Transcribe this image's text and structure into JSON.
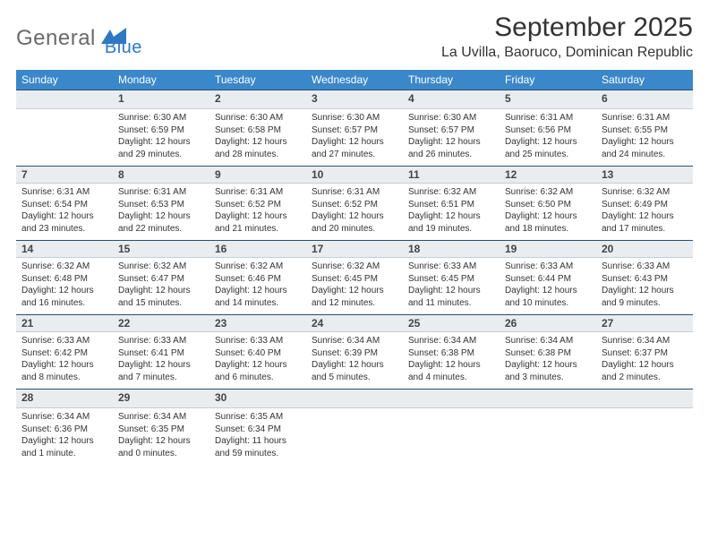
{
  "logo": {
    "text_general": "General",
    "text_blue": "Blue",
    "mark_color": "#2f78c3"
  },
  "title": {
    "month": "September 2025",
    "location": "La Uvilla, Baoruco, Dominican Republic"
  },
  "colors": {
    "header_bg": "#3a88c9",
    "daynum_bg": "#e9edf0",
    "daynum_border_top": "#2a4e72"
  },
  "weekdays": [
    "Sunday",
    "Monday",
    "Tuesday",
    "Wednesday",
    "Thursday",
    "Friday",
    "Saturday"
  ],
  "weeks": [
    [
      {
        "n": "",
        "sunrise": "",
        "sunset": "",
        "daylight": ""
      },
      {
        "n": "1",
        "sunrise": "Sunrise: 6:30 AM",
        "sunset": "Sunset: 6:59 PM",
        "daylight": "Daylight: 12 hours and 29 minutes."
      },
      {
        "n": "2",
        "sunrise": "Sunrise: 6:30 AM",
        "sunset": "Sunset: 6:58 PM",
        "daylight": "Daylight: 12 hours and 28 minutes."
      },
      {
        "n": "3",
        "sunrise": "Sunrise: 6:30 AM",
        "sunset": "Sunset: 6:57 PM",
        "daylight": "Daylight: 12 hours and 27 minutes."
      },
      {
        "n": "4",
        "sunrise": "Sunrise: 6:30 AM",
        "sunset": "Sunset: 6:57 PM",
        "daylight": "Daylight: 12 hours and 26 minutes."
      },
      {
        "n": "5",
        "sunrise": "Sunrise: 6:31 AM",
        "sunset": "Sunset: 6:56 PM",
        "daylight": "Daylight: 12 hours and 25 minutes."
      },
      {
        "n": "6",
        "sunrise": "Sunrise: 6:31 AM",
        "sunset": "Sunset: 6:55 PM",
        "daylight": "Daylight: 12 hours and 24 minutes."
      }
    ],
    [
      {
        "n": "7",
        "sunrise": "Sunrise: 6:31 AM",
        "sunset": "Sunset: 6:54 PM",
        "daylight": "Daylight: 12 hours and 23 minutes."
      },
      {
        "n": "8",
        "sunrise": "Sunrise: 6:31 AM",
        "sunset": "Sunset: 6:53 PM",
        "daylight": "Daylight: 12 hours and 22 minutes."
      },
      {
        "n": "9",
        "sunrise": "Sunrise: 6:31 AM",
        "sunset": "Sunset: 6:52 PM",
        "daylight": "Daylight: 12 hours and 21 minutes."
      },
      {
        "n": "10",
        "sunrise": "Sunrise: 6:31 AM",
        "sunset": "Sunset: 6:52 PM",
        "daylight": "Daylight: 12 hours and 20 minutes."
      },
      {
        "n": "11",
        "sunrise": "Sunrise: 6:32 AM",
        "sunset": "Sunset: 6:51 PM",
        "daylight": "Daylight: 12 hours and 19 minutes."
      },
      {
        "n": "12",
        "sunrise": "Sunrise: 6:32 AM",
        "sunset": "Sunset: 6:50 PM",
        "daylight": "Daylight: 12 hours and 18 minutes."
      },
      {
        "n": "13",
        "sunrise": "Sunrise: 6:32 AM",
        "sunset": "Sunset: 6:49 PM",
        "daylight": "Daylight: 12 hours and 17 minutes."
      }
    ],
    [
      {
        "n": "14",
        "sunrise": "Sunrise: 6:32 AM",
        "sunset": "Sunset: 6:48 PM",
        "daylight": "Daylight: 12 hours and 16 minutes."
      },
      {
        "n": "15",
        "sunrise": "Sunrise: 6:32 AM",
        "sunset": "Sunset: 6:47 PM",
        "daylight": "Daylight: 12 hours and 15 minutes."
      },
      {
        "n": "16",
        "sunrise": "Sunrise: 6:32 AM",
        "sunset": "Sunset: 6:46 PM",
        "daylight": "Daylight: 12 hours and 14 minutes."
      },
      {
        "n": "17",
        "sunrise": "Sunrise: 6:32 AM",
        "sunset": "Sunset: 6:45 PM",
        "daylight": "Daylight: 12 hours and 12 minutes."
      },
      {
        "n": "18",
        "sunrise": "Sunrise: 6:33 AM",
        "sunset": "Sunset: 6:45 PM",
        "daylight": "Daylight: 12 hours and 11 minutes."
      },
      {
        "n": "19",
        "sunrise": "Sunrise: 6:33 AM",
        "sunset": "Sunset: 6:44 PM",
        "daylight": "Daylight: 12 hours and 10 minutes."
      },
      {
        "n": "20",
        "sunrise": "Sunrise: 6:33 AM",
        "sunset": "Sunset: 6:43 PM",
        "daylight": "Daylight: 12 hours and 9 minutes."
      }
    ],
    [
      {
        "n": "21",
        "sunrise": "Sunrise: 6:33 AM",
        "sunset": "Sunset: 6:42 PM",
        "daylight": "Daylight: 12 hours and 8 minutes."
      },
      {
        "n": "22",
        "sunrise": "Sunrise: 6:33 AM",
        "sunset": "Sunset: 6:41 PM",
        "daylight": "Daylight: 12 hours and 7 minutes."
      },
      {
        "n": "23",
        "sunrise": "Sunrise: 6:33 AM",
        "sunset": "Sunset: 6:40 PM",
        "daylight": "Daylight: 12 hours and 6 minutes."
      },
      {
        "n": "24",
        "sunrise": "Sunrise: 6:34 AM",
        "sunset": "Sunset: 6:39 PM",
        "daylight": "Daylight: 12 hours and 5 minutes."
      },
      {
        "n": "25",
        "sunrise": "Sunrise: 6:34 AM",
        "sunset": "Sunset: 6:38 PM",
        "daylight": "Daylight: 12 hours and 4 minutes."
      },
      {
        "n": "26",
        "sunrise": "Sunrise: 6:34 AM",
        "sunset": "Sunset: 6:38 PM",
        "daylight": "Daylight: 12 hours and 3 minutes."
      },
      {
        "n": "27",
        "sunrise": "Sunrise: 6:34 AM",
        "sunset": "Sunset: 6:37 PM",
        "daylight": "Daylight: 12 hours and 2 minutes."
      }
    ],
    [
      {
        "n": "28",
        "sunrise": "Sunrise: 6:34 AM",
        "sunset": "Sunset: 6:36 PM",
        "daylight": "Daylight: 12 hours and 1 minute."
      },
      {
        "n": "29",
        "sunrise": "Sunrise: 6:34 AM",
        "sunset": "Sunset: 6:35 PM",
        "daylight": "Daylight: 12 hours and 0 minutes."
      },
      {
        "n": "30",
        "sunrise": "Sunrise: 6:35 AM",
        "sunset": "Sunset: 6:34 PM",
        "daylight": "Daylight: 11 hours and 59 minutes."
      },
      {
        "n": "",
        "sunrise": "",
        "sunset": "",
        "daylight": ""
      },
      {
        "n": "",
        "sunrise": "",
        "sunset": "",
        "daylight": ""
      },
      {
        "n": "",
        "sunrise": "",
        "sunset": "",
        "daylight": ""
      },
      {
        "n": "",
        "sunrise": "",
        "sunset": "",
        "daylight": ""
      }
    ]
  ]
}
